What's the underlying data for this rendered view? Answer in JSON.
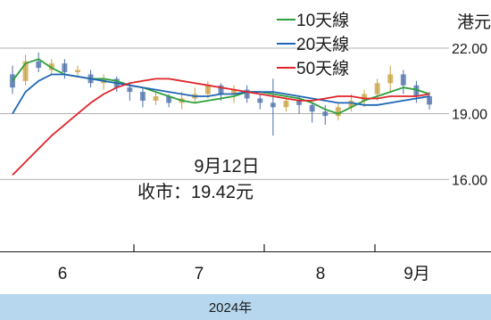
{
  "chart_data": {
    "type": "line",
    "unit_label": "港元",
    "y_ticks": [
      "22.00",
      "19.00",
      "16.00"
    ],
    "y_tick_values": [
      22,
      19,
      16
    ],
    "ylim": [
      13.2,
      24.2
    ],
    "x_ticks": [
      "6",
      "7",
      "8",
      "9月"
    ],
    "year_label": "2024年",
    "annotation": {
      "date": "9月12日",
      "close": "收市：19.42元"
    },
    "colors": {
      "ma10": "#2ea03a",
      "ma20": "#1f66b5",
      "ma50": "#e0242a",
      "up": "#c8a040",
      "down": "#4a6fa8",
      "grid": "#999999",
      "year_band": "#b6d7ee"
    },
    "legend": [
      "10天線",
      "20天線",
      "50天線"
    ],
    "series": [
      {
        "name": "10天線",
        "color": "#2ea03a",
        "values": [
          20.5,
          21.3,
          21.5,
          21.1,
          20.8,
          20.7,
          20.6,
          20.6,
          20.5,
          20.3,
          20.2,
          20.0,
          19.8,
          19.6,
          19.5,
          19.6,
          19.7,
          19.8,
          20.0,
          20.0,
          19.9,
          19.8,
          19.7,
          19.5,
          19.2,
          19.0,
          19.3,
          19.6,
          19.8,
          20.0,
          20.2,
          20.1,
          19.9
        ]
      },
      {
        "name": "20天線",
        "color": "#1f66b5",
        "values": [
          19.0,
          20.0,
          20.5,
          20.8,
          20.8,
          20.7,
          20.6,
          20.5,
          20.4,
          20.3,
          20.2,
          20.1,
          20.0,
          19.9,
          19.8,
          19.8,
          19.9,
          19.9,
          20.0,
          20.0,
          20.0,
          19.9,
          19.8,
          19.7,
          19.6,
          19.5,
          19.5,
          19.4,
          19.4,
          19.5,
          19.6,
          19.7,
          19.8
        ]
      },
      {
        "name": "50天線",
        "color": "#e0242a",
        "values": [
          16.2,
          16.8,
          17.4,
          18.0,
          18.5,
          19.0,
          19.5,
          19.9,
          20.2,
          20.4,
          20.5,
          20.6,
          20.6,
          20.5,
          20.4,
          20.3,
          20.2,
          20.1,
          20.0,
          19.9,
          19.8,
          19.7,
          19.6,
          19.6,
          19.7,
          19.8,
          19.8,
          19.7,
          19.7,
          19.8,
          19.8,
          19.8,
          19.9
        ]
      }
    ],
    "candles": [
      [
        20.8,
        20.2,
        21.2,
        19.9
      ],
      [
        20.5,
        21.4,
        21.7,
        20.3
      ],
      [
        21.4,
        21.1,
        21.8,
        20.9
      ],
      [
        21.0,
        21.3,
        21.5,
        20.8
      ],
      [
        21.3,
        20.9,
        21.5,
        20.6
      ],
      [
        20.9,
        21.0,
        21.2,
        20.7
      ],
      [
        20.8,
        20.4,
        21.0,
        20.2
      ],
      [
        20.4,
        20.6,
        20.8,
        20.1
      ],
      [
        20.6,
        20.2,
        20.7,
        20.0
      ],
      [
        20.2,
        20.0,
        20.4,
        19.6
      ],
      [
        20.0,
        19.6,
        20.2,
        19.3
      ],
      [
        19.6,
        19.8,
        20.0,
        19.4
      ],
      [
        19.8,
        19.5,
        19.9,
        19.3
      ],
      [
        19.5,
        19.7,
        20.0,
        19.2
      ],
      [
        19.7,
        19.9,
        20.2,
        19.5
      ],
      [
        19.9,
        20.3,
        20.5,
        19.7
      ],
      [
        20.3,
        19.9,
        20.4,
        19.6
      ],
      [
        19.9,
        20.1,
        20.3,
        19.5
      ],
      [
        20.1,
        19.7,
        20.3,
        19.5
      ],
      [
        19.7,
        19.5,
        19.9,
        19.2
      ],
      [
        19.5,
        19.3,
        20.6,
        18.0
      ],
      [
        19.3,
        19.6,
        19.8,
        19.1
      ],
      [
        19.6,
        19.4,
        19.8,
        19.0
      ],
      [
        19.4,
        19.1,
        19.5,
        18.6
      ],
      [
        19.1,
        18.9,
        19.4,
        18.5
      ],
      [
        18.9,
        19.3,
        19.5,
        18.7
      ],
      [
        19.3,
        19.6,
        19.9,
        19.1
      ],
      [
        19.6,
        19.9,
        20.1,
        19.3
      ],
      [
        19.9,
        20.4,
        20.6,
        19.6
      ],
      [
        20.4,
        20.8,
        21.2,
        20.0
      ],
      [
        20.8,
        20.3,
        21.0,
        19.9
      ],
      [
        20.3,
        19.8,
        20.5,
        19.5
      ],
      [
        19.8,
        19.42,
        20.0,
        19.2
      ]
    ]
  }
}
